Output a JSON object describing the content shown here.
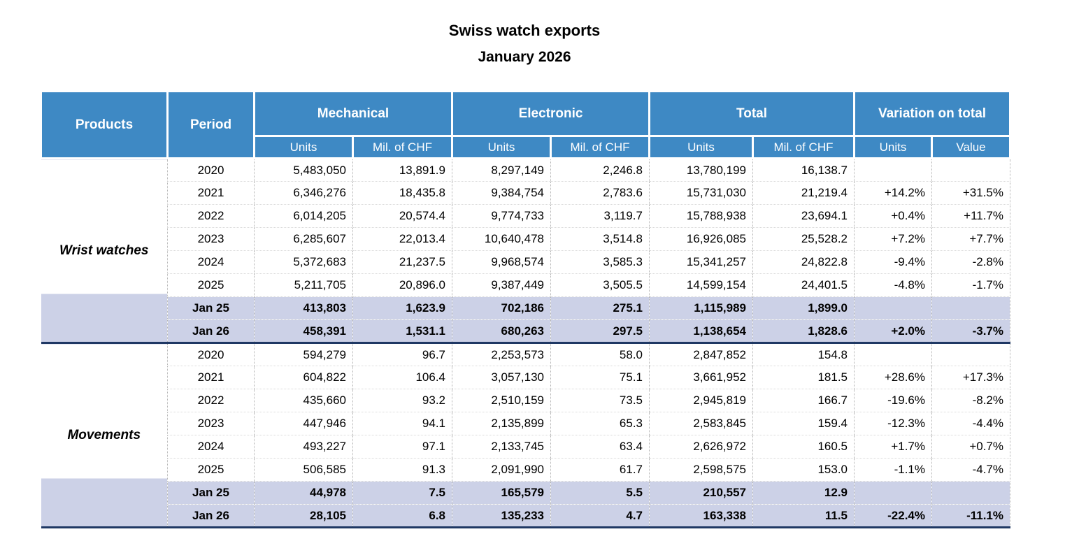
{
  "title": {
    "line1": "Swiss watch exports",
    "line2": "January 2026"
  },
  "colors": {
    "header_bg": "#3e89c4",
    "highlight_bg": "#ccd1e7",
    "section_line": "#1f3864",
    "grid_dot": "#b3b3b3",
    "row_line": "#d9d9d9"
  },
  "table": {
    "headers": {
      "products": "Products",
      "period": "Period",
      "groups": [
        {
          "label": "Mechanical",
          "sub": [
            "Units",
            "Mil. of CHF"
          ]
        },
        {
          "label": "Electronic",
          "sub": [
            "Units",
            "Mil. of CHF"
          ]
        },
        {
          "label": "Total",
          "sub": [
            "Units",
            "Mil. of CHF"
          ]
        },
        {
          "label": "Variation on total",
          "sub": [
            "Units",
            "Value"
          ]
        }
      ]
    },
    "sections": [
      {
        "product": "Wrist watches",
        "rows": [
          {
            "period": "2020",
            "highlight": false,
            "values": [
              "5,483,050",
              "13,891.9",
              "8,297,149",
              "2,246.8",
              "13,780,199",
              "16,138.7",
              "",
              ""
            ]
          },
          {
            "period": "2021",
            "highlight": false,
            "values": [
              "6,346,276",
              "18,435.8",
              "9,384,754",
              "2,783.6",
              "15,731,030",
              "21,219.4",
              "+14.2%",
              "+31.5%"
            ]
          },
          {
            "period": "2022",
            "highlight": false,
            "values": [
              "6,014,205",
              "20,574.4",
              "9,774,733",
              "3,119.7",
              "15,788,938",
              "23,694.1",
              "+0.4%",
              "+11.7%"
            ]
          },
          {
            "period": "2023",
            "highlight": false,
            "values": [
              "6,285,607",
              "22,013.4",
              "10,640,478",
              "3,514.8",
              "16,926,085",
              "25,528.2",
              "+7.2%",
              "+7.7%"
            ]
          },
          {
            "period": "2024",
            "highlight": false,
            "values": [
              "5,372,683",
              "21,237.5",
              "9,968,574",
              "3,585.3",
              "15,341,257",
              "24,822.8",
              "-9.4%",
              "-2.8%"
            ]
          },
          {
            "period": "2025",
            "highlight": false,
            "values": [
              "5,211,705",
              "20,896.0",
              "9,387,449",
              "3,505.5",
              "14,599,154",
              "24,401.5",
              "-4.8%",
              "-1.7%"
            ]
          },
          {
            "period": "Jan 25",
            "highlight": true,
            "values": [
              "413,803",
              "1,623.9",
              "702,186",
              "275.1",
              "1,115,989",
              "1,899.0",
              "",
              ""
            ]
          },
          {
            "period": "Jan 26",
            "highlight": true,
            "values": [
              "458,391",
              "1,531.1",
              "680,263",
              "297.5",
              "1,138,654",
              "1,828.6",
              "+2.0%",
              "-3.7%"
            ]
          }
        ]
      },
      {
        "product": "Movements",
        "rows": [
          {
            "period": "2020",
            "highlight": false,
            "values": [
              "594,279",
              "96.7",
              "2,253,573",
              "58.0",
              "2,847,852",
              "154.8",
              "",
              ""
            ]
          },
          {
            "period": "2021",
            "highlight": false,
            "values": [
              "604,822",
              "106.4",
              "3,057,130",
              "75.1",
              "3,661,952",
              "181.5",
              "+28.6%",
              "+17.3%"
            ]
          },
          {
            "period": "2022",
            "highlight": false,
            "values": [
              "435,660",
              "93.2",
              "2,510,159",
              "73.5",
              "2,945,819",
              "166.7",
              "-19.6%",
              "-8.2%"
            ]
          },
          {
            "period": "2023",
            "highlight": false,
            "values": [
              "447,946",
              "94.1",
              "2,135,899",
              "65.3",
              "2,583,845",
              "159.4",
              "-12.3%",
              "-4.4%"
            ]
          },
          {
            "period": "2024",
            "highlight": false,
            "values": [
              "493,227",
              "97.1",
              "2,133,745",
              "63.4",
              "2,626,972",
              "160.5",
              "+1.7%",
              "+0.7%"
            ]
          },
          {
            "period": "2025",
            "highlight": false,
            "values": [
              "506,585",
              "91.3",
              "2,091,990",
              "61.7",
              "2,598,575",
              "153.0",
              "-1.1%",
              "-4.7%"
            ]
          },
          {
            "period": "Jan 25",
            "highlight": true,
            "values": [
              "44,978",
              "7.5",
              "165,579",
              "5.5",
              "210,557",
              "12.9",
              "",
              ""
            ]
          },
          {
            "period": "Jan 26",
            "highlight": true,
            "values": [
              "28,105",
              "6.8",
              "135,233",
              "4.7",
              "163,338",
              "11.5",
              "-22.4%",
              "-11.1%"
            ]
          }
        ]
      }
    ]
  }
}
